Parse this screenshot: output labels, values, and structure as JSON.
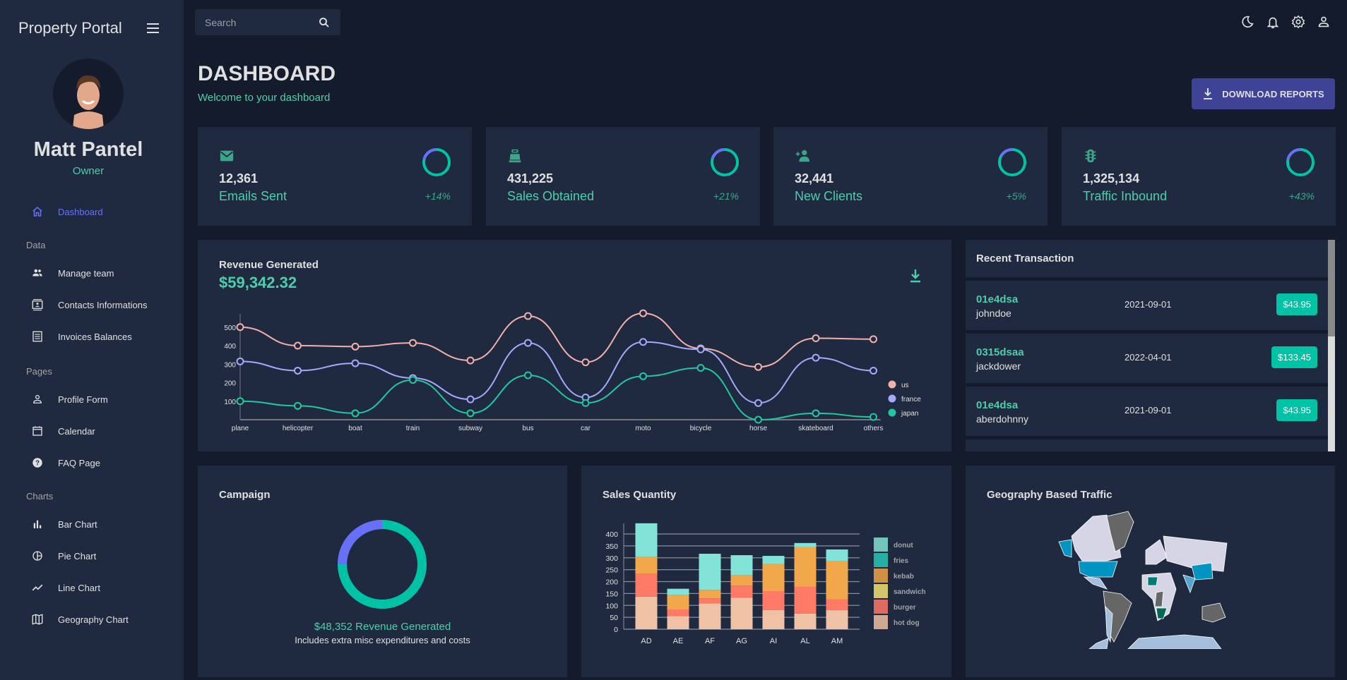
{
  "sidebar": {
    "brand": "Property Portal",
    "user": {
      "name": "Matt Pantel",
      "role": "Owner"
    },
    "dashboard": "Dashboard",
    "sections": [
      {
        "title": "Data",
        "items": [
          {
            "label": "Manage team",
            "icon": "people-icon"
          },
          {
            "label": "Contacts Informations",
            "icon": "contacts-icon"
          },
          {
            "label": "Invoices Balances",
            "icon": "receipt-icon"
          }
        ]
      },
      {
        "title": "Pages",
        "items": [
          {
            "label": "Profile Form",
            "icon": "person-icon"
          },
          {
            "label": "Calendar",
            "icon": "calendar-icon"
          },
          {
            "label": "FAQ Page",
            "icon": "help-icon"
          }
        ]
      },
      {
        "title": "Charts",
        "items": [
          {
            "label": "Bar Chart",
            "icon": "bar-chart-icon"
          },
          {
            "label": "Pie Chart",
            "icon": "pie-chart-icon"
          },
          {
            "label": "Line Chart",
            "icon": "line-chart-icon"
          },
          {
            "label": "Geography Chart",
            "icon": "map-icon"
          }
        ]
      }
    ]
  },
  "topbar": {
    "search_placeholder": "Search",
    "icons": [
      "moon-icon",
      "bell-icon",
      "gear-icon",
      "person-icon"
    ]
  },
  "header": {
    "title": "DASHBOARD",
    "subtitle": "Welcome to your dashboard",
    "download_label": "DOWNLOAD REPORTS"
  },
  "stats": [
    {
      "value": "12,361",
      "label": "Emails Sent",
      "increase": "+14%",
      "icon": "email-icon",
      "progress": 0.22
    },
    {
      "value": "431,225",
      "label": "Sales Obtained",
      "increase": "+21%",
      "icon": "point-of-sale-icon",
      "progress": 0.2
    },
    {
      "value": "32,441",
      "label": "New Clients",
      "increase": "+5%",
      "icon": "person-add-icon",
      "progress": 0.17
    },
    {
      "value": "1,325,134",
      "label": "Traffic Inbound",
      "increase": "+43%",
      "icon": "traffic-icon",
      "progress": 0.22
    }
  ],
  "colors": {
    "accent": "#4cceac",
    "blue": "#6870fa",
    "panel": "#1f2a40",
    "bg": "#141b2d",
    "button": "#3e4396"
  },
  "revenue": {
    "title": "Revenue Generated",
    "amount": "$59,342.32"
  },
  "transactions": {
    "title": "Recent Transaction",
    "items": [
      {
        "id": "01e4dsa",
        "user": "johndoe",
        "date": "2021-09-01",
        "cost": "$43.95"
      },
      {
        "id": "0315dsaa",
        "user": "jackdower",
        "date": "2022-04-01",
        "cost": "$133.45"
      },
      {
        "id": "01e4dsa",
        "user": "aberdohnny",
        "date": "2021-09-01",
        "cost": "$43.95"
      }
    ]
  },
  "campaign": {
    "title": "Campaign",
    "revenue": "$48,352 Revenue Generated",
    "note": "Includes extra misc expenditures and costs",
    "progress": 0.25
  },
  "sales": {
    "title": "Sales Quantity"
  },
  "geo": {
    "title": "Geography Based Traffic"
  },
  "chart_data": [
    {
      "type": "line",
      "categories": [
        "plane",
        "helicopter",
        "boat",
        "train",
        "subway",
        "bus",
        "car",
        "moto",
        "bicycle",
        "horse",
        "skateboard",
        "others"
      ],
      "yticks": [
        100,
        200,
        300,
        400,
        500
      ],
      "ylim": [
        0,
        580
      ],
      "legend": "right",
      "series": [
        {
          "name": "us",
          "color": "#f2b0a8",
          "values": [
            500,
            400,
            395,
            415,
            320,
            560,
            310,
            575,
            385,
            285,
            440,
            435
          ]
        },
        {
          "name": "france",
          "color": "#a4a9fc",
          "values": [
            315,
            265,
            305,
            225,
            110,
            415,
            120,
            420,
            380,
            90,
            335,
            265
          ]
        },
        {
          "name": "japan",
          "color": "#1ec9a0",
          "values": [
            100,
            75,
            35,
            215,
            35,
            240,
            90,
            235,
            280,
            0,
            35,
            15
          ]
        }
      ]
    },
    {
      "type": "bar",
      "stacked": true,
      "categories": [
        "AD",
        "AE",
        "AF",
        "AG",
        "AI",
        "AL",
        "AM"
      ],
      "yticks": [
        0,
        50,
        100,
        150,
        200,
        250,
        300,
        350,
        400
      ],
      "ylim": [
        0,
        445
      ],
      "legend": "right",
      "series": [
        {
          "name": "hot dog",
          "color": "#efc2a5",
          "legend_color": "#cda992",
          "values": [
            137,
            55,
            109,
            133,
            81,
            66,
            80
          ]
        },
        {
          "name": "burger",
          "color": "#ff7a65",
          "legend_color": "#de6b61",
          "values": [
            96,
            28,
            21,
            50,
            79,
            112,
            46
          ]
        },
        {
          "name": "sandwich",
          "color": "#d4c56a",
          "legend_color": "#d4c56a",
          "values": [
            0,
            0,
            0,
            0,
            0,
            0,
            0
          ]
        },
        {
          "name": "kebab",
          "color": "#f0a84a",
          "legend_color": "#d09147",
          "values": [
            72,
            60,
            35,
            45,
            113,
            166,
            159
          ]
        },
        {
          "name": "fries",
          "color": "#26b0a5",
          "legend_color": "#26b0a5",
          "values": [
            0,
            0,
            0,
            0,
            0,
            0,
            0
          ]
        },
        {
          "name": "donut",
          "color": "#82e3d8",
          "legend_color": "#75c5bd",
          "values": [
            140,
            27,
            152,
            83,
            35,
            18,
            50
          ]
        }
      ]
    }
  ]
}
